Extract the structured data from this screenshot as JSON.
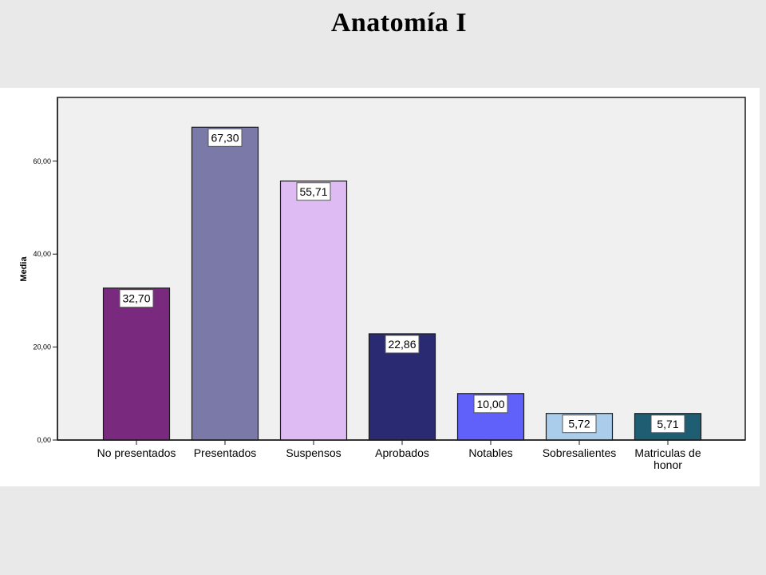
{
  "page": {
    "title": "Anatomía I"
  },
  "colors": {
    "page_background": "#e9e9e9",
    "plot_background": "#f0f0f0",
    "bar_outline": "#1a1a1a"
  },
  "chart_data": {
    "type": "bar",
    "title": "",
    "xlabel": "",
    "ylabel": "Media",
    "ylim": [
      0,
      72
    ],
    "yticks": [
      0,
      20,
      40,
      60
    ],
    "ytick_labels": [
      "0,00",
      "20,00",
      "40,00",
      "60,00"
    ],
    "grid": false,
    "legend": "none",
    "categories": [
      "No presentados",
      "Presentados",
      "Suspensos",
      "Aprobados",
      "Notables",
      "Sobresalientes",
      "Matriculas de honor"
    ],
    "category_label_lines": [
      [
        "No presentados"
      ],
      [
        "Presentados"
      ],
      [
        "Suspensos"
      ],
      [
        "Aprobados"
      ],
      [
        "Notables"
      ],
      [
        "Sobresalientes"
      ],
      [
        "Matriculas de",
        "honor"
      ]
    ],
    "values": [
      32.7,
      67.3,
      55.71,
      22.86,
      10.0,
      5.72,
      5.71
    ],
    "value_labels": [
      "32,70",
      "67,30",
      "55,71",
      "22,86",
      "10,00",
      "5,72",
      "5,71"
    ],
    "bar_colors": [
      "#7a2a7e",
      "#7a79a8",
      "#dfbbf3",
      "#2a2a72",
      "#6060fb",
      "#aacdec",
      "#1f5d72"
    ]
  }
}
